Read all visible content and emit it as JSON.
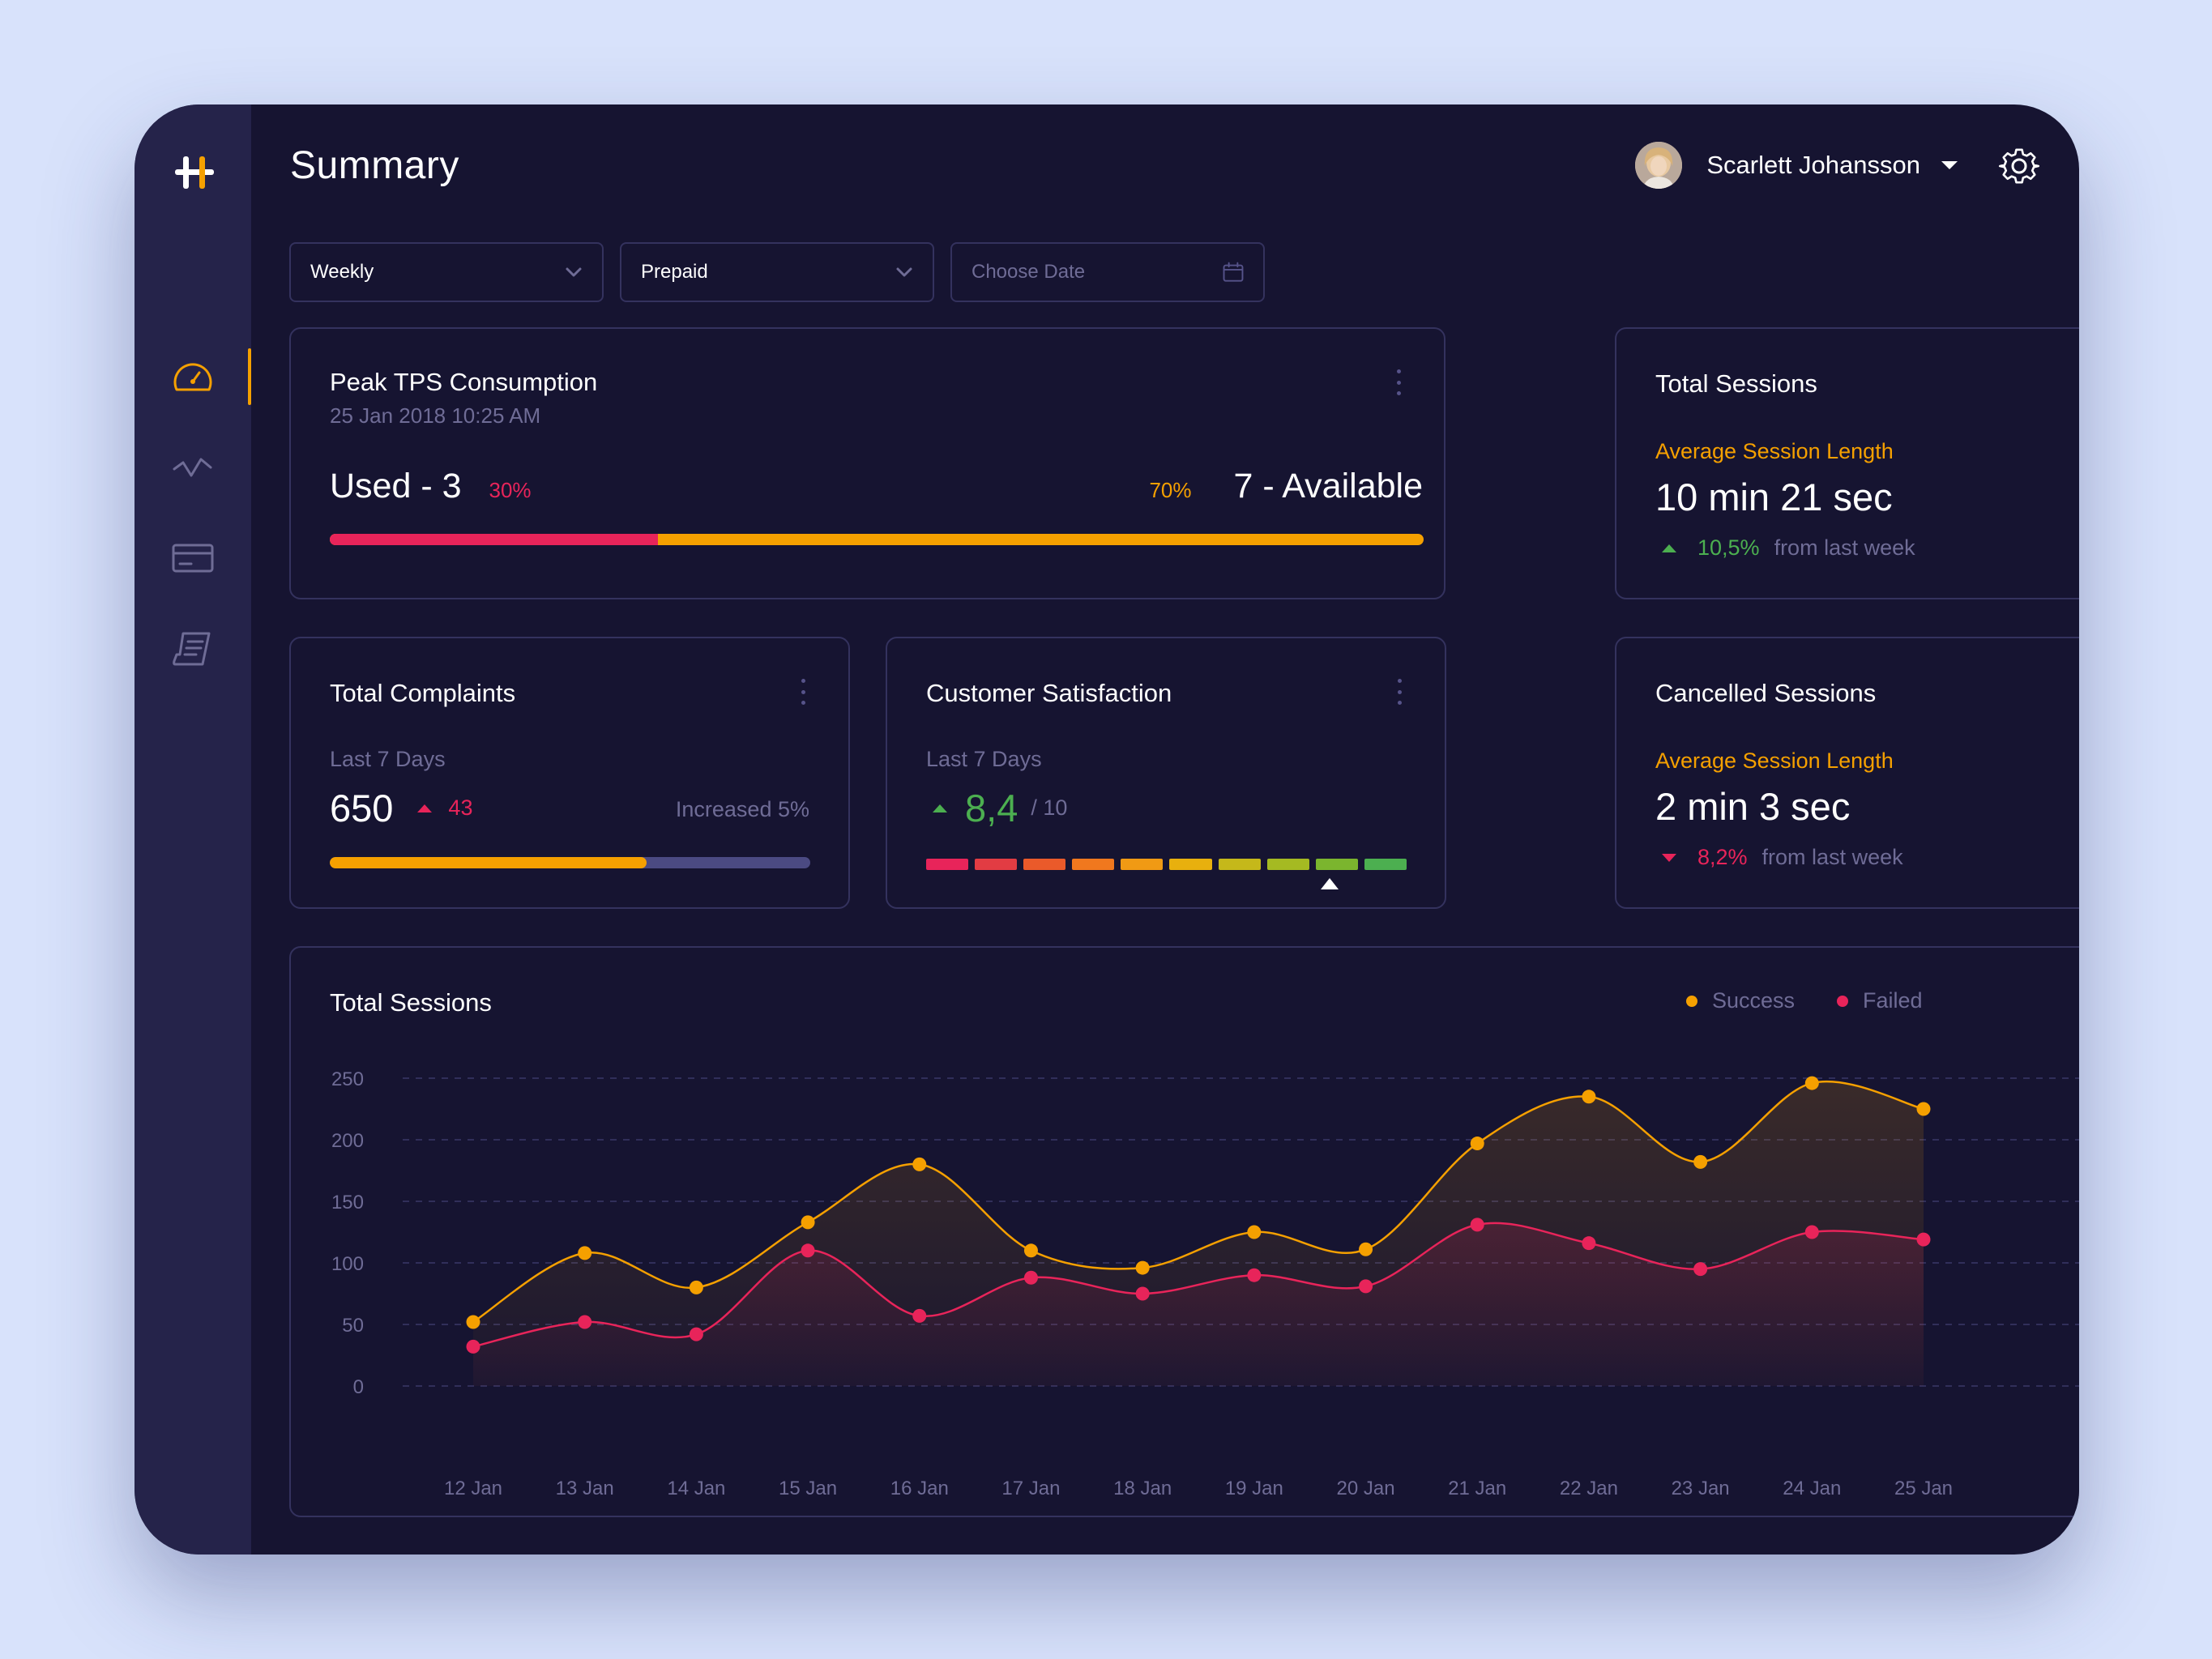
{
  "header": {
    "title": "Summary",
    "user_name": "Scarlett Johansson"
  },
  "icons": {
    "logo": "logo-icon",
    "dashboard": "speedometer-icon",
    "analytics": "line-chart-icon",
    "billing": "credit-card-icon",
    "reports": "receipt-icon",
    "settings": "gear-icon",
    "calendar": "calendar-icon"
  },
  "filters": {
    "period": "Weekly",
    "plan": "Prepaid",
    "date_placeholder": "Choose Date"
  },
  "peak_tps": {
    "title": "Peak TPS Consumption",
    "timestamp": "25 Jan 2018 10:25 AM",
    "used_label": "Used - 3",
    "used_pct_label": "30%",
    "available_pct_label": "70%",
    "available_label": "7 - Available",
    "used_fraction": 0.3
  },
  "total_sessions_card": {
    "title": "Total Sessions",
    "subtitle": "Average Session Length",
    "value": "10 min 21 sec",
    "change": "10,5%",
    "change_suffix": "from last week"
  },
  "complaints": {
    "title": "Total Complaints",
    "period": "Last 7 Days",
    "value": "650",
    "delta": "43",
    "note": "Increased 5%",
    "progress_fraction": 0.66
  },
  "satisfaction": {
    "title": "Customer Satisfaction",
    "period": "Last 7 Days",
    "score": "8,4",
    "max": "/ 10",
    "score_value": 8.4,
    "segment_colors": [
      "#e8245a",
      "#e23c43",
      "#ea5a2a",
      "#f0781e",
      "#f09a14",
      "#e8b00e",
      "#c5b81a",
      "#a5ba22",
      "#7bb52e",
      "#4caf50"
    ]
  },
  "cancelled": {
    "title": "Cancelled Sessions",
    "subtitle": "Average Session Length",
    "value": "2 min 3 sec",
    "change": "8,2%",
    "change_suffix": "from last week"
  },
  "sessions_chart": {
    "title": "Total Sessions",
    "legend": [
      {
        "name": "Success",
        "color": "#f5a000"
      },
      {
        "name": "Failed",
        "color": "#e8245a"
      }
    ]
  },
  "chart_data": {
    "type": "line",
    "title": "Total Sessions",
    "categories": [
      "12 Jan",
      "13 Jan",
      "14 Jan",
      "15 Jan",
      "16 Jan",
      "17 Jan",
      "18 Jan",
      "19 Jan",
      "20 Jan",
      "21 Jan",
      "22 Jan",
      "23 Jan",
      "24 Jan",
      "25 Jan"
    ],
    "series": [
      {
        "name": "Success",
        "color": "#f5a000",
        "values": [
          52,
          108,
          80,
          133,
          180,
          110,
          96,
          125,
          111,
          197,
          235,
          182,
          246,
          225
        ]
      },
      {
        "name": "Failed",
        "color": "#e8245a",
        "values": [
          32,
          52,
          42,
          110,
          57,
          88,
          75,
          90,
          81,
          131,
          116,
          95,
          125,
          119
        ]
      }
    ],
    "yticks": [
      0,
      50,
      100,
      150,
      200,
      250
    ],
    "ylim": [
      0,
      250
    ],
    "grid": true,
    "legend_position": "top-right"
  }
}
